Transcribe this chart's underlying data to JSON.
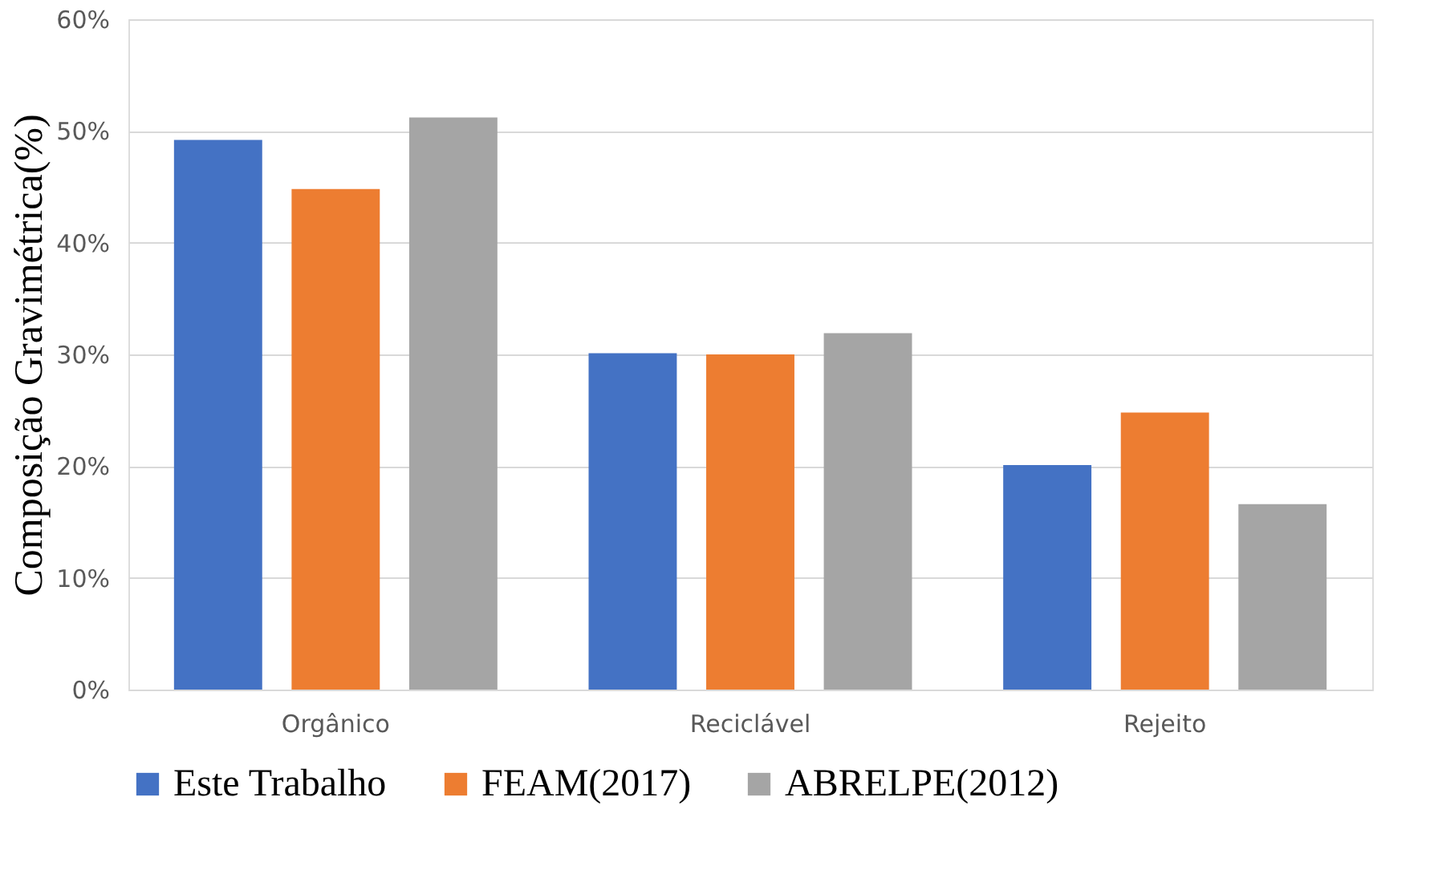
{
  "chart_data": {
    "type": "bar",
    "ylabel": "Composição Gravimétrica(%)",
    "categories": [
      "Orgânico",
      "Reciclável",
      "Rejeito"
    ],
    "series": [
      {
        "name": "Este Trabalho",
        "color": "#4472c4",
        "values": [
          49.2,
          30.1,
          20.1
        ]
      },
      {
        "name": "FEAM(2017)",
        "color": "#ed7d31",
        "values": [
          44.8,
          30.0,
          24.8
        ]
      },
      {
        "name": "ABRELPE(2012)",
        "color": "#a5a5a5",
        "values": [
          51.2,
          31.9,
          16.6
        ]
      }
    ],
    "ylim": [
      0,
      60
    ],
    "yticks": [
      {
        "value": 0,
        "label": "0%"
      },
      {
        "value": 10,
        "label": "10%"
      },
      {
        "value": 20,
        "label": "20%"
      },
      {
        "value": 30,
        "label": "30%"
      },
      {
        "value": 40,
        "label": "40%"
      },
      {
        "value": 50,
        "label": "50%"
      },
      {
        "value": 60,
        "label": "60%"
      }
    ],
    "grid": "y",
    "legend": "bottom"
  }
}
